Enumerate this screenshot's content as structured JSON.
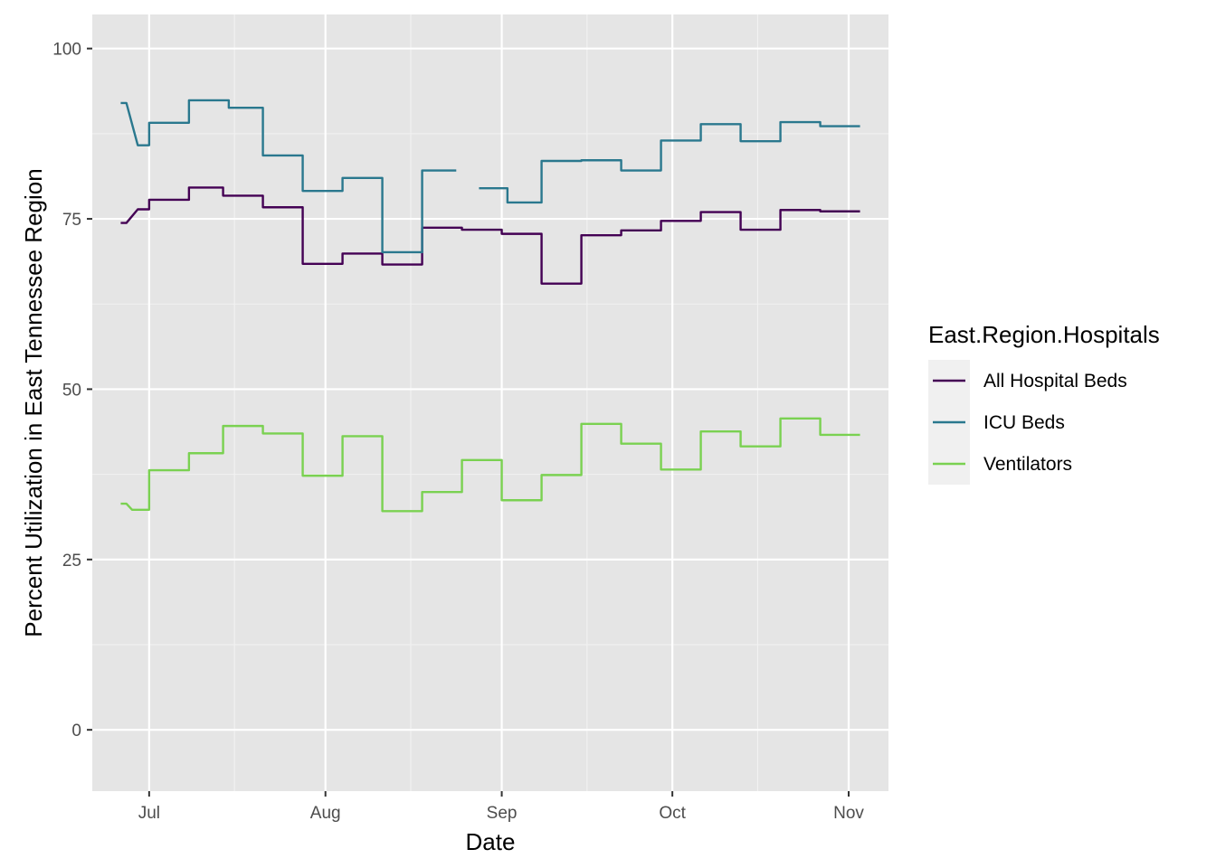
{
  "chart_data": {
    "type": "line",
    "title": "",
    "xlabel": "Date",
    "ylabel": "Percent Utilization in East Tennessee Region",
    "xlim": [
      "2020-06-21",
      "2020-11-08"
    ],
    "ylim": [
      -9,
      105
    ],
    "x_ticks": [
      {
        "date": "2020-07-01",
        "label": "Jul"
      },
      {
        "date": "2020-08-01",
        "label": "Aug"
      },
      {
        "date": "2020-09-01",
        "label": "Sep"
      },
      {
        "date": "2020-10-01",
        "label": "Oct"
      },
      {
        "date": "2020-11-01",
        "label": "Nov"
      }
    ],
    "x_minor_ticks": [
      "2020-07-16",
      "2020-08-16",
      "2020-09-16",
      "2020-10-16"
    ],
    "y_ticks": [
      0,
      25,
      50,
      75,
      100
    ],
    "y_minor_ticks": [
      12.5,
      37.5,
      62.5,
      87.5
    ],
    "grid": true,
    "panel_background": "#e5e5e5",
    "legend": {
      "title": "East.Region.Hospitals",
      "position": "right"
    },
    "series": [
      {
        "name": "All Hospital Beds",
        "color": "#440154",
        "points": [
          [
            "2020-06-26",
            74.4
          ],
          [
            "2020-06-27",
            74.4
          ],
          [
            "2020-06-29",
            76.4
          ],
          [
            "2020-07-01",
            76.4
          ],
          [
            "2020-07-01",
            77.8
          ],
          [
            "2020-07-08",
            77.8
          ],
          [
            "2020-07-08",
            79.6
          ],
          [
            "2020-07-14",
            79.6
          ],
          [
            "2020-07-14",
            78.4
          ],
          [
            "2020-07-21",
            78.4
          ],
          [
            "2020-07-21",
            76.7
          ],
          [
            "2020-07-28",
            76.7
          ],
          [
            "2020-07-28",
            68.4
          ],
          [
            "2020-08-04",
            68.4
          ],
          [
            "2020-08-04",
            69.9
          ],
          [
            "2020-08-11",
            69.9
          ],
          [
            "2020-08-11",
            68.3
          ],
          [
            "2020-08-18",
            68.3
          ],
          [
            "2020-08-18",
            73.7
          ],
          [
            "2020-08-25",
            73.7
          ],
          [
            "2020-08-25",
            73.4
          ],
          [
            "2020-09-01",
            73.4
          ],
          [
            "2020-09-01",
            72.8
          ],
          [
            "2020-09-08",
            72.8
          ],
          [
            "2020-09-08",
            65.5
          ],
          [
            "2020-09-15",
            65.5
          ],
          [
            "2020-09-15",
            72.6
          ],
          [
            "2020-09-22",
            72.6
          ],
          [
            "2020-09-22",
            73.3
          ],
          [
            "2020-09-29",
            73.3
          ],
          [
            "2020-09-29",
            74.7
          ],
          [
            "2020-10-06",
            74.7
          ],
          [
            "2020-10-06",
            76.0
          ],
          [
            "2020-10-13",
            76.0
          ],
          [
            "2020-10-13",
            73.4
          ],
          [
            "2020-10-20",
            73.4
          ],
          [
            "2020-10-20",
            76.3
          ],
          [
            "2020-10-27",
            76.3
          ],
          [
            "2020-10-27",
            76.1
          ],
          [
            "2020-11-03",
            76.1
          ]
        ]
      },
      {
        "name": "ICU Beds",
        "color": "#2a788e",
        "points": [
          [
            "2020-06-26",
            92.0
          ],
          [
            "2020-06-27",
            92.0
          ],
          [
            "2020-06-29",
            85.8
          ],
          [
            "2020-07-01",
            85.8
          ],
          [
            "2020-07-01",
            89.1
          ],
          [
            "2020-07-08",
            89.1
          ],
          [
            "2020-07-08",
            92.4
          ],
          [
            "2020-07-15",
            92.4
          ],
          [
            "2020-07-15",
            91.3
          ],
          [
            "2020-07-21",
            91.3
          ],
          [
            "2020-07-21",
            84.3
          ],
          [
            "2020-07-28",
            84.3
          ],
          [
            "2020-07-28",
            79.1
          ],
          [
            "2020-08-04",
            79.1
          ],
          [
            "2020-08-04",
            81.0
          ],
          [
            "2020-08-11",
            81.0
          ],
          [
            "2020-08-11",
            70.1
          ],
          [
            "2020-08-18",
            70.1
          ],
          [
            "2020-08-18",
            82.1
          ],
          [
            "2020-08-24",
            82.1
          ],
          null,
          [
            "2020-08-28",
            79.5
          ],
          [
            "2020-09-02",
            79.5
          ],
          [
            "2020-09-02",
            77.4
          ],
          [
            "2020-09-08",
            77.4
          ],
          [
            "2020-09-08",
            83.5
          ],
          [
            "2020-09-15",
            83.5
          ],
          [
            "2020-09-15",
            83.6
          ],
          [
            "2020-09-22",
            83.6
          ],
          [
            "2020-09-22",
            82.1
          ],
          [
            "2020-09-29",
            82.1
          ],
          [
            "2020-09-29",
            86.5
          ],
          [
            "2020-10-06",
            86.5
          ],
          [
            "2020-10-06",
            88.9
          ],
          [
            "2020-10-13",
            88.9
          ],
          [
            "2020-10-13",
            86.4
          ],
          [
            "2020-10-20",
            86.4
          ],
          [
            "2020-10-20",
            89.2
          ],
          [
            "2020-10-27",
            89.2
          ],
          [
            "2020-10-27",
            88.6
          ],
          [
            "2020-11-03",
            88.6
          ]
        ]
      },
      {
        "name": "Ventilators",
        "color": "#7ad151",
        "points": [
          [
            "2020-06-26",
            33.2
          ],
          [
            "2020-06-27",
            33.2
          ],
          [
            "2020-06-28",
            32.3
          ],
          [
            "2020-07-01",
            32.3
          ],
          [
            "2020-07-01",
            38.1
          ],
          [
            "2020-07-08",
            38.1
          ],
          [
            "2020-07-08",
            40.6
          ],
          [
            "2020-07-14",
            40.6
          ],
          [
            "2020-07-14",
            44.6
          ],
          [
            "2020-07-21",
            44.6
          ],
          [
            "2020-07-21",
            43.5
          ],
          [
            "2020-07-28",
            43.5
          ],
          [
            "2020-07-28",
            37.3
          ],
          [
            "2020-08-04",
            37.3
          ],
          [
            "2020-08-04",
            43.1
          ],
          [
            "2020-08-11",
            43.1
          ],
          [
            "2020-08-11",
            32.1
          ],
          [
            "2020-08-18",
            32.1
          ],
          [
            "2020-08-18",
            34.9
          ],
          [
            "2020-08-25",
            34.9
          ],
          [
            "2020-08-25",
            39.6
          ],
          [
            "2020-09-01",
            39.6
          ],
          [
            "2020-09-01",
            33.7
          ],
          [
            "2020-09-08",
            33.7
          ],
          [
            "2020-09-08",
            37.4
          ],
          [
            "2020-09-15",
            37.4
          ],
          [
            "2020-09-15",
            44.9
          ],
          [
            "2020-09-22",
            44.9
          ],
          [
            "2020-09-22",
            42.0
          ],
          [
            "2020-09-29",
            42.0
          ],
          [
            "2020-09-29",
            38.2
          ],
          [
            "2020-10-06",
            38.2
          ],
          [
            "2020-10-06",
            43.8
          ],
          [
            "2020-10-13",
            43.8
          ],
          [
            "2020-10-13",
            41.6
          ],
          [
            "2020-10-20",
            41.6
          ],
          [
            "2020-10-20",
            45.7
          ],
          [
            "2020-10-27",
            45.7
          ],
          [
            "2020-10-27",
            43.3
          ],
          [
            "2020-11-03",
            43.3
          ]
        ]
      }
    ]
  }
}
